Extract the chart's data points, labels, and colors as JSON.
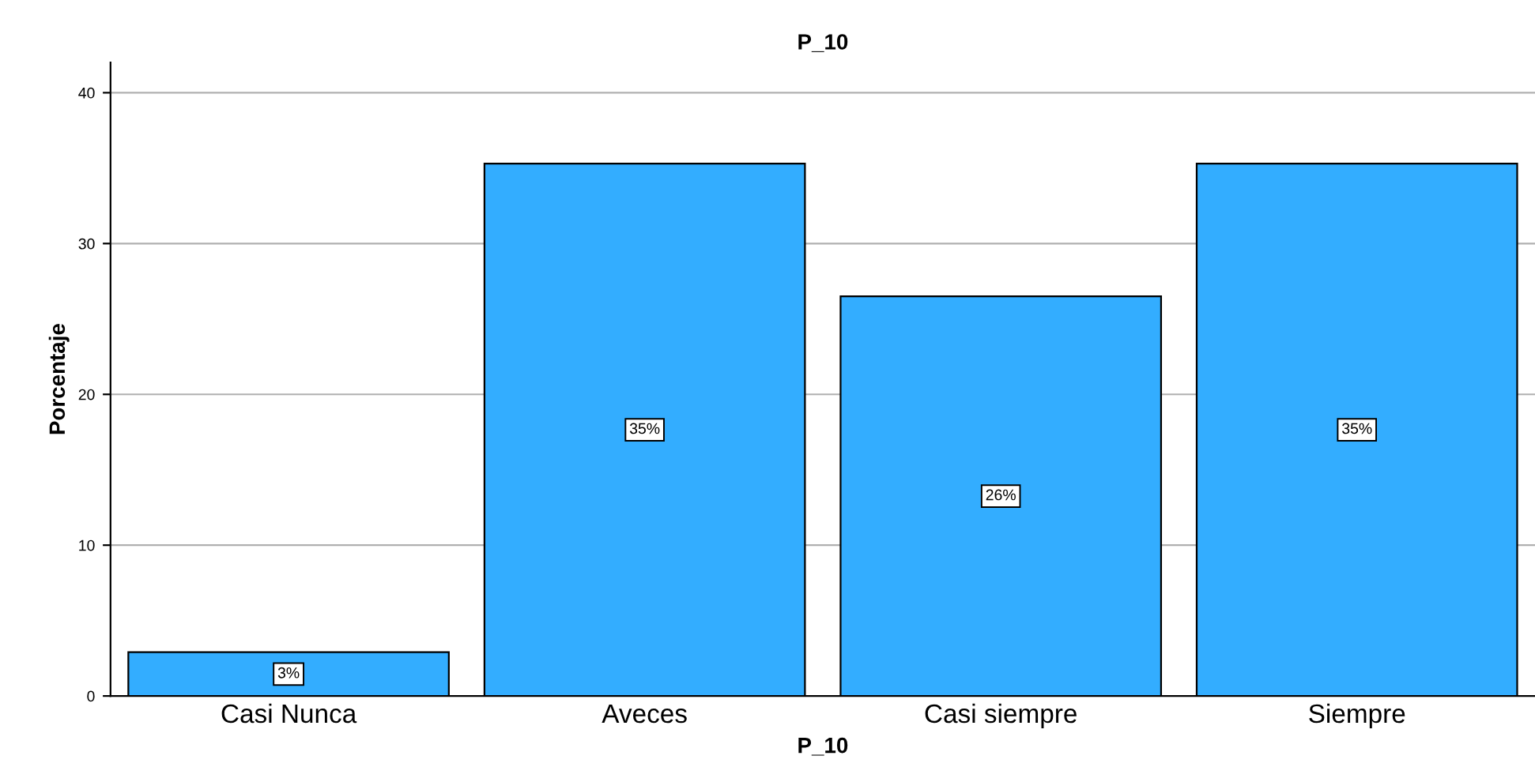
{
  "chart_data": {
    "type": "bar",
    "title": "P_10",
    "xlabel": "P_10",
    "ylabel": "Porcentaje",
    "categories": [
      "Casi Nunca",
      "Aveces",
      "Casi siempre",
      "Siempre"
    ],
    "values": [
      2.9,
      35.3,
      26.5,
      35.3
    ],
    "value_labels": [
      "3%",
      "35%",
      "26%",
      "35%"
    ],
    "color": "#33adff",
    "ylim": [
      0,
      42
    ],
    "yticks": [
      0,
      10,
      20,
      30,
      40
    ],
    "grid": "y"
  }
}
